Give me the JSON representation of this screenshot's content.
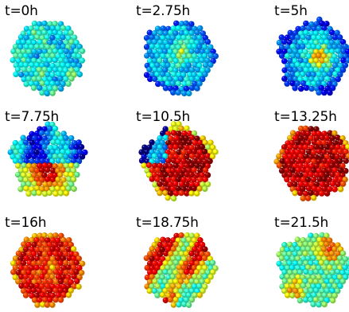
{
  "panels": [
    {
      "label": "t=0h",
      "phase": 0
    },
    {
      "label": "t=2.75h",
      "phase": 1
    },
    {
      "label": "t=5h",
      "phase": 2
    },
    {
      "label": "t=7.75h",
      "phase": 3
    },
    {
      "label": "t=10.5h",
      "phase": 4
    },
    {
      "label": "t=13.25h",
      "phase": 5
    },
    {
      "label": "t=16h",
      "phase": 6
    },
    {
      "label": "t=18.75h",
      "phase": 7
    },
    {
      "label": "t=21.5h",
      "phase": 8
    }
  ],
  "colormap": [
    "#00007f",
    "#0000ff",
    "#0080ff",
    "#00ffff",
    "#80ff80",
    "#ffff00",
    "#ff8000",
    "#ff0000",
    "#7f0000"
  ]
}
